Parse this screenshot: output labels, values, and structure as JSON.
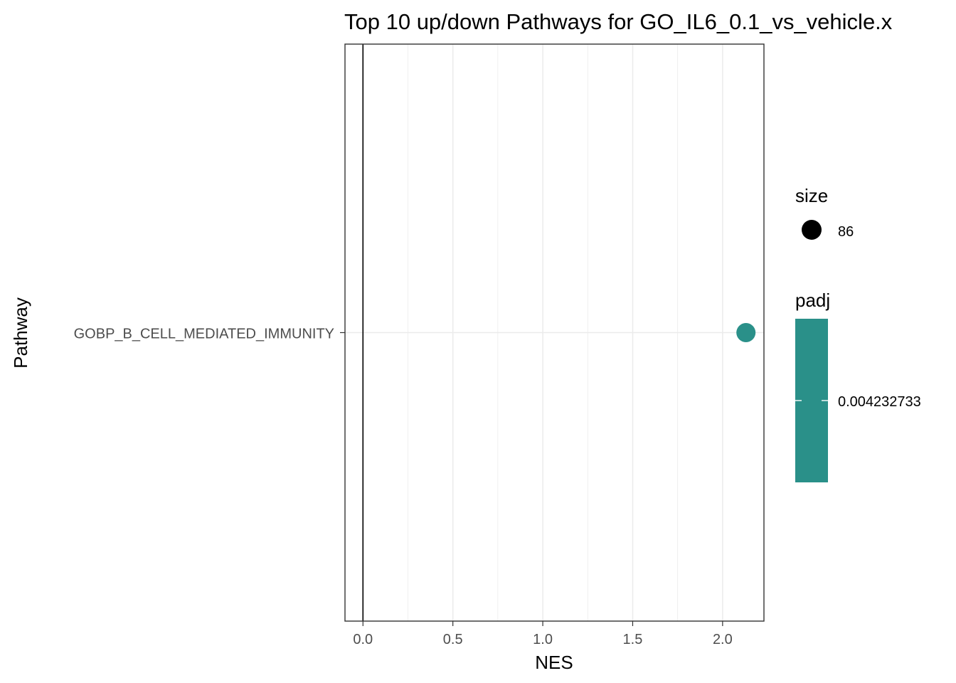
{
  "chart_data": {
    "type": "scatter",
    "title": "Top 10 up/down Pathways for  GO_IL6_0.1_vs_vehicle.x",
    "xlabel": "NES",
    "ylabel": "Pathway",
    "xlim": [
      -0.1,
      2.23
    ],
    "x_ticks": [
      0.0,
      0.5,
      1.0,
      1.5,
      2.0
    ],
    "x_tick_labels": [
      "0.0",
      "0.5",
      "1.0",
      "1.5",
      "2.0"
    ],
    "categories": [
      "GOBP_B_CELL_MEDIATED_IMMUNITY"
    ],
    "points": [
      {
        "pathway": "GOBP_B_CELL_MEDIATED_IMMUNITY",
        "nes": 2.13,
        "size": 86,
        "padj": 0.004232733
      }
    ],
    "reference_line_x": 0,
    "grid": true,
    "point_color": "#2A9089",
    "legend": {
      "size_title": "size",
      "size_label": "86",
      "color_title": "padj",
      "color_label": "0.004232733",
      "placement": "right"
    }
  }
}
